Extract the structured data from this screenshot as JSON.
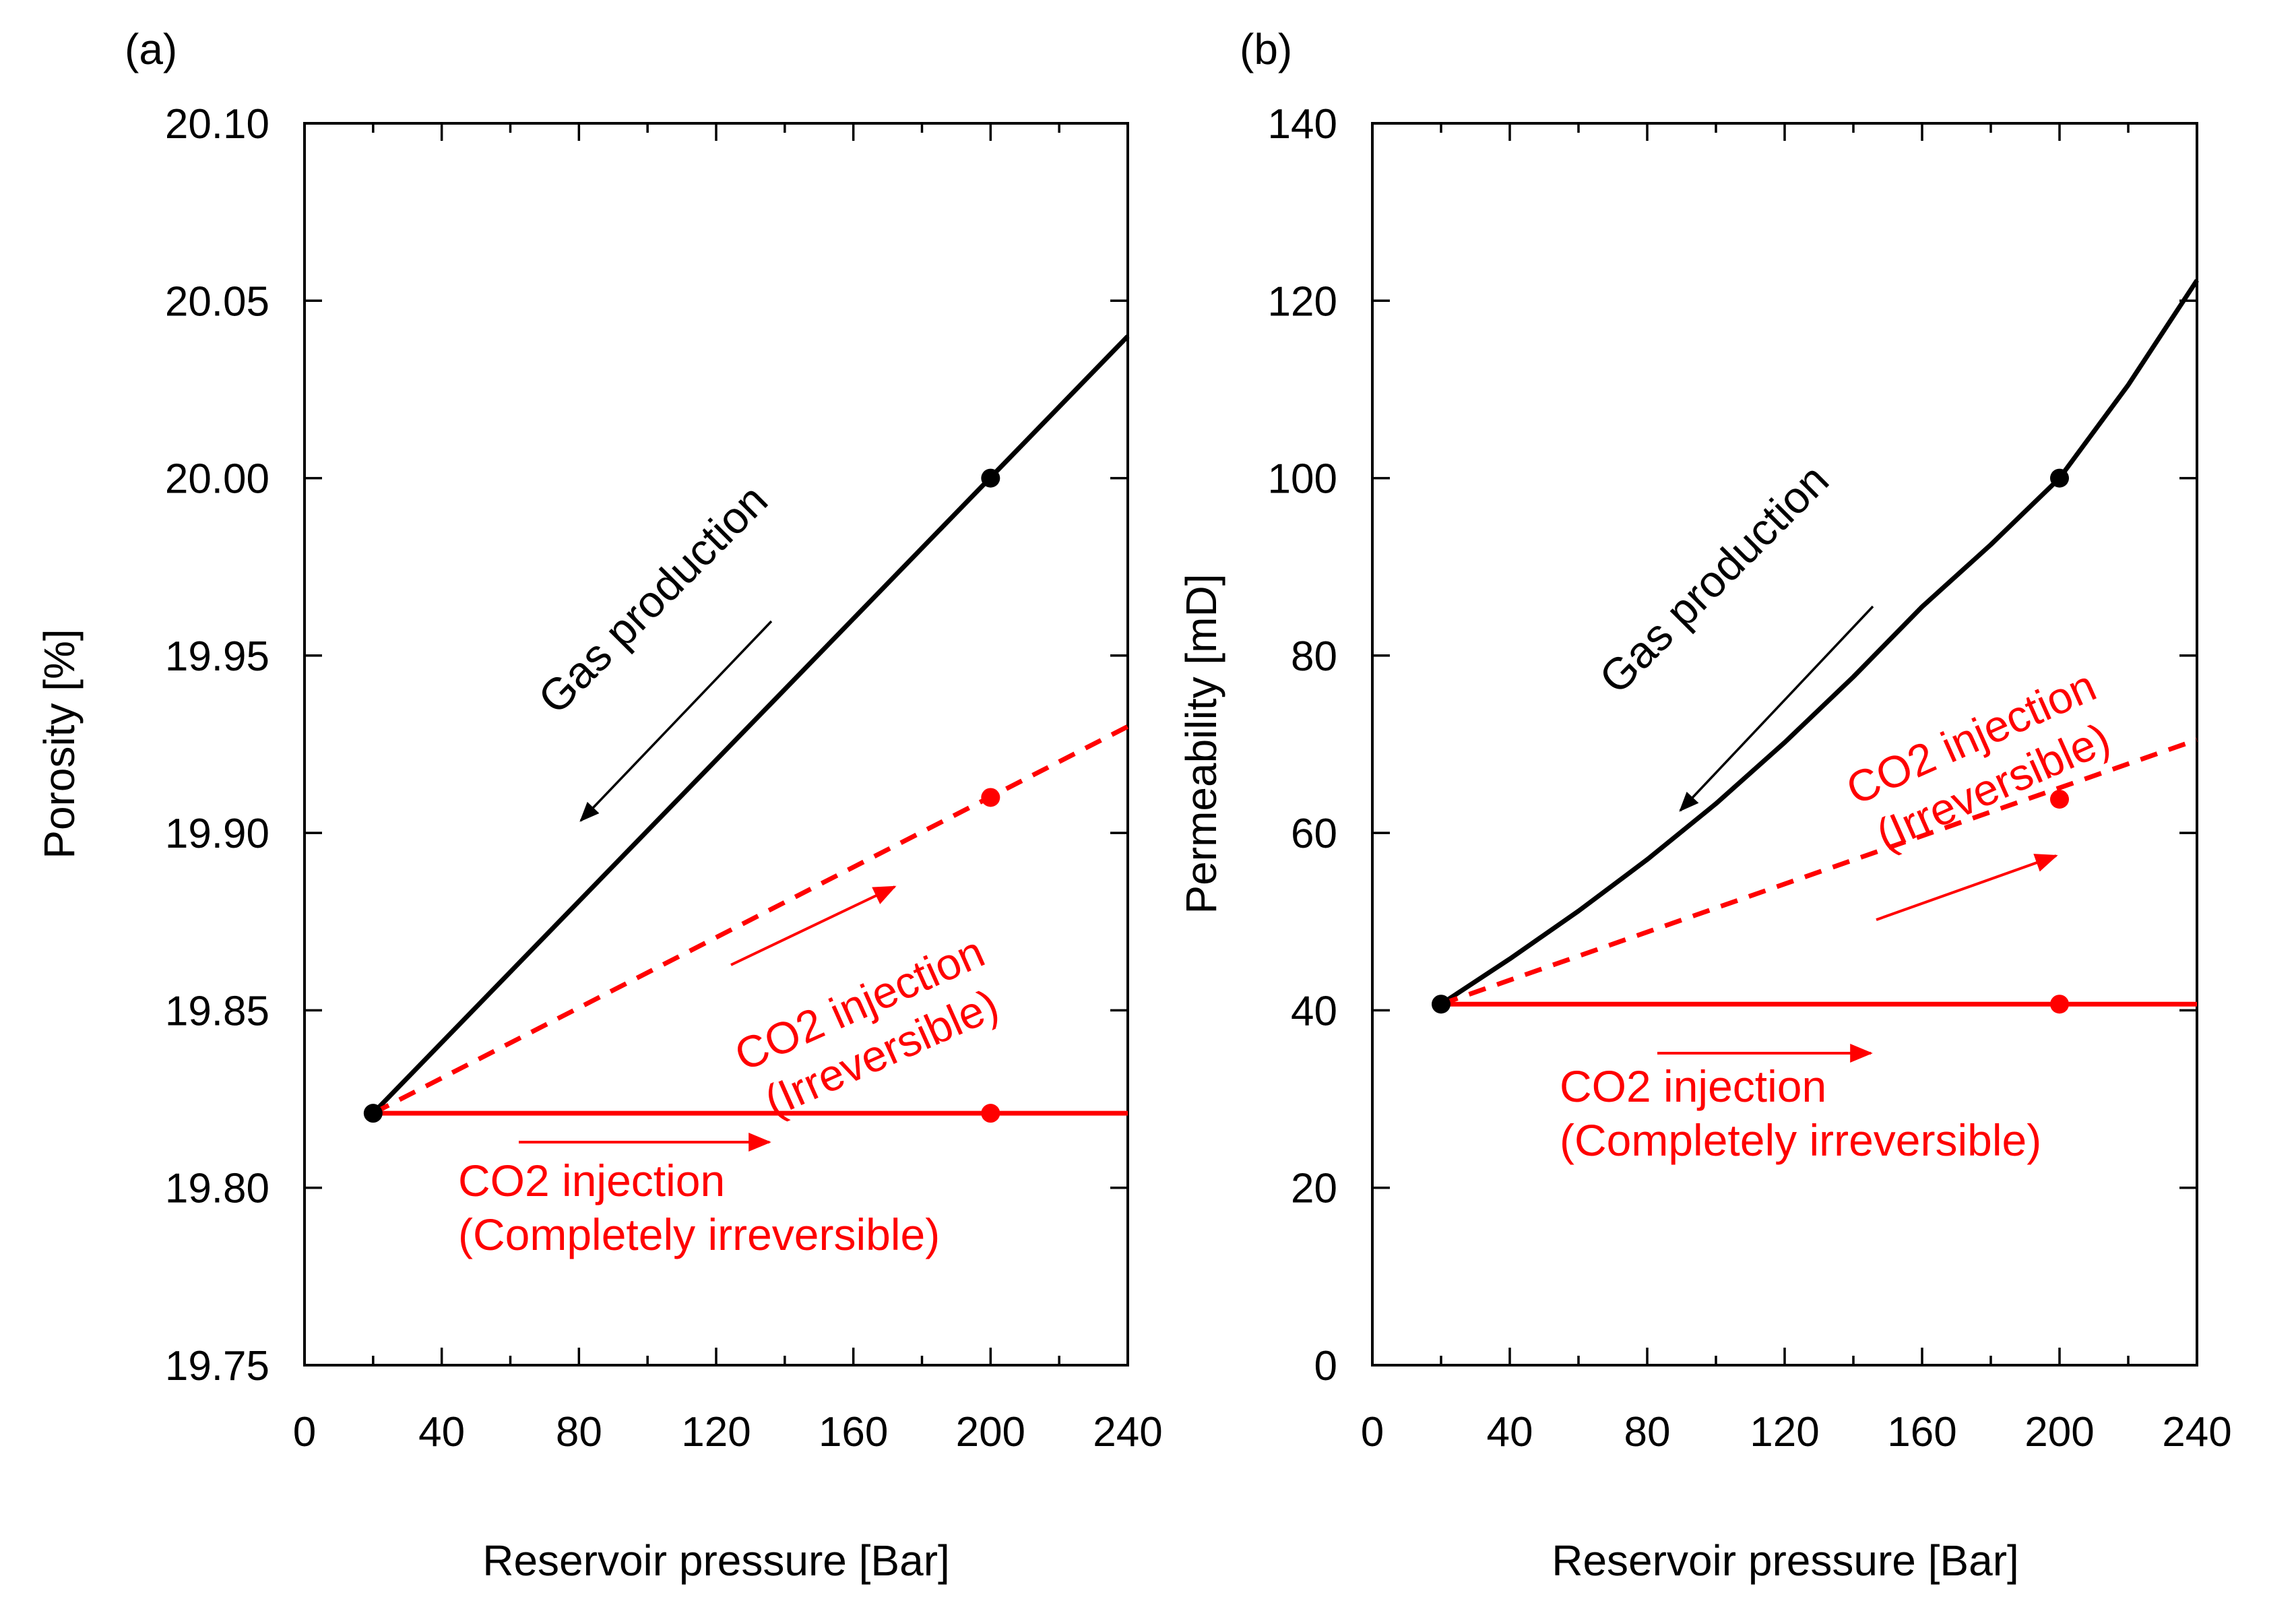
{
  "colors": {
    "black": "#000000",
    "red": "#ff0000"
  },
  "chart_data": [
    {
      "type": "line",
      "panel_label": "(a)",
      "xlabel": "Reservoir pressure [Bar]",
      "ylabel": "Porosity [%]",
      "xlim": [
        0,
        240
      ],
      "ylim": [
        19.75,
        20.1
      ],
      "xticks": [
        0,
        40,
        80,
        120,
        160,
        200,
        240
      ],
      "yticks": [
        19.75,
        19.8,
        19.85,
        19.9,
        19.95,
        20.0,
        20.05,
        20.1
      ],
      "xtick_labels": [
        "0",
        "40",
        "80",
        "120",
        "160",
        "200",
        "240"
      ],
      "ytick_labels": [
        "19.75",
        "19.80",
        "19.85",
        "19.90",
        "19.95",
        "20.00",
        "20.05",
        "20.10"
      ],
      "series": [
        {
          "color": "#000000",
          "style": "solid",
          "points": [
            [
              20,
              19.821
            ],
            [
              240,
              20.04
            ]
          ],
          "markers": [
            [
              20,
              19.821
            ],
            [
              200,
              20.0
            ]
          ]
        },
        {
          "color": "#ff0000",
          "style": "dashed",
          "points": [
            [
              20,
              19.821
            ],
            [
              240,
              19.93
            ]
          ],
          "markers": [
            [
              200,
              19.91
            ]
          ]
        },
        {
          "color": "#ff0000",
          "style": "solid",
          "points": [
            [
              20,
              19.821
            ],
            [
              240,
              19.821
            ]
          ],
          "markers": [
            [
              200,
              19.821
            ]
          ]
        }
      ],
      "annotations": [
        {
          "lines": [
            "Gas production"
          ],
          "color": "#000000",
          "rotate": -45
        },
        {
          "lines": [
            "CO2 injection",
            "(Irreversible)"
          ],
          "color": "#ff0000",
          "rotate": -24
        },
        {
          "lines": [
            "CO2 injection",
            "(Completely irreversible)"
          ],
          "color": "#ff0000",
          "rotate": 0
        }
      ]
    },
    {
      "type": "line",
      "panel_label": "(b)",
      "xlabel": "Reservoir pressure [Bar]",
      "ylabel": "Permeability [mD]",
      "xlim": [
        0,
        240
      ],
      "ylim": [
        0,
        140
      ],
      "xticks": [
        0,
        40,
        80,
        120,
        160,
        200,
        240
      ],
      "yticks": [
        0,
        20,
        40,
        60,
        80,
        100,
        120,
        140
      ],
      "xtick_labels": [
        "0",
        "40",
        "80",
        "120",
        "160",
        "200",
        "240"
      ],
      "ytick_labels": [
        "0",
        "20",
        "40",
        "60",
        "80",
        "100",
        "120",
        "140"
      ],
      "series": [
        {
          "color": "#000000",
          "style": "solid",
          "points": [
            [
              20,
              40.7
            ],
            [
              40,
              45.8
            ],
            [
              60,
              51.2
            ],
            [
              80,
              57.0
            ],
            [
              100,
              63.3
            ],
            [
              120,
              70.2
            ],
            [
              140,
              77.6
            ],
            [
              160,
              85.5
            ],
            [
              180,
              92.5
            ],
            [
              200,
              100
            ],
            [
              220,
              110.5
            ],
            [
              240,
              122.3
            ]
          ],
          "markers": [
            [
              20,
              40.7
            ],
            [
              200,
              100
            ]
          ]
        },
        {
          "color": "#ff0000",
          "style": "dashed",
          "points": [
            [
              20,
              40.7
            ],
            [
              240,
              70.5
            ]
          ],
          "markers": [
            [
              200,
              63.8
            ]
          ]
        },
        {
          "color": "#ff0000",
          "style": "solid",
          "points": [
            [
              20,
              40.7
            ],
            [
              240,
              40.7
            ]
          ],
          "markers": [
            [
              200,
              40.7
            ]
          ]
        }
      ],
      "annotations": [
        {
          "lines": [
            "Gas production"
          ],
          "color": "#000000",
          "rotate": -45
        },
        {
          "lines": [
            "CO2 injection",
            "(Irreversible)"
          ],
          "color": "#ff0000",
          "rotate": -24
        },
        {
          "lines": [
            "CO2 injection",
            "(Completely irreversible)"
          ],
          "color": "#ff0000",
          "rotate": 0
        }
      ]
    }
  ]
}
